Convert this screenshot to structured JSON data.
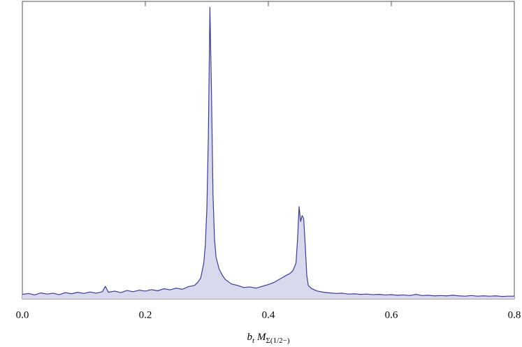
{
  "chart_data": {
    "type": "area",
    "x_label_parts": [
      "b",
      "t",
      "M",
      "Σ(1/2−)"
    ],
    "x": [
      0,
      0.01,
      0.02,
      0.03,
      0.04,
      0.05,
      0.06,
      0.07,
      0.08,
      0.09,
      0.1,
      0.11,
      0.12,
      0.13,
      0.135,
      0.14,
      0.15,
      0.16,
      0.17,
      0.18,
      0.19,
      0.2,
      0.21,
      0.22,
      0.23,
      0.24,
      0.25,
      0.26,
      0.27,
      0.28,
      0.285,
      0.29,
      0.295,
      0.2975,
      0.3,
      0.3025,
      0.305,
      0.3075,
      0.31,
      0.3125,
      0.315,
      0.32,
      0.325,
      0.33,
      0.34,
      0.35,
      0.36,
      0.37,
      0.38,
      0.39,
      0.4,
      0.41,
      0.42,
      0.43,
      0.435,
      0.44,
      0.445,
      0.4475,
      0.45,
      0.4525,
      0.455,
      0.4575,
      0.46,
      0.4625,
      0.465,
      0.47,
      0.475,
      0.48,
      0.49,
      0.5,
      0.51,
      0.52,
      0.53,
      0.54,
      0.55,
      0.56,
      0.57,
      0.58,
      0.59,
      0.6,
      0.61,
      0.62,
      0.63,
      0.64,
      0.65,
      0.66,
      0.67,
      0.68,
      0.69,
      0.7,
      0.71,
      0.72,
      0.73,
      0.74,
      0.75,
      0.76,
      0.77,
      0.78,
      0.79,
      0.8
    ],
    "values": [
      1.5,
      1.8,
      1.3,
      2.0,
      1.6,
      1.9,
      1.4,
      2.1,
      1.7,
      2.2,
      1.8,
      2.3,
      1.9,
      2.4,
      4.2,
      2.2,
      2.6,
      2.1,
      2.8,
      2.4,
      2.9,
      2.6,
      3.1,
      2.7,
      3.4,
      3.0,
      3.6,
      3.2,
      4.1,
      4.5,
      5.5,
      7,
      12,
      18,
      30,
      55,
      98,
      70,
      35,
      20,
      14,
      10,
      8,
      6.5,
      5,
      4.5,
      3.8,
      4.0,
      3.6,
      4.2,
      4.8,
      5.6,
      6.8,
      8,
      8.5,
      9.5,
      12,
      20,
      31,
      26,
      28,
      27,
      18,
      8,
      4.5,
      3.5,
      3,
      2.6,
      2.2,
      2.0,
      1.8,
      1.9,
      1.6,
      1.7,
      1.5,
      1.6,
      1.4,
      1.5,
      1.3,
      1.4,
      1.2,
      1.3,
      1.1,
      1.5,
      1.1,
      1.2,
      1.0,
      1.1,
      1.0,
      1.2,
      1.0,
      0.9,
      1.1,
      0.9,
      1.0,
      0.9,
      1.0,
      0.8,
      0.9,
      0.9
    ],
    "color": "#3b3b98",
    "fill_color": "#d9d9ee",
    "xlim": [
      0,
      0.8
    ],
    "ylim": [
      0,
      100
    ],
    "xticks": [
      {
        "value": 0,
        "label": "0.0"
      },
      0.2,
      0.4,
      0.6,
      0.8
    ]
  }
}
